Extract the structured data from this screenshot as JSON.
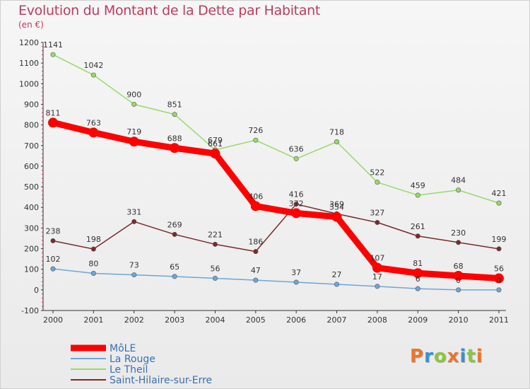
{
  "header": {
    "title": "Evolution du Montant de la Dette par Habitant",
    "subtitle": "(en €)"
  },
  "logo": {
    "text": "Proxiti",
    "letters": [
      {
        "ch": "P",
        "color": "#e8762d"
      },
      {
        "ch": "r",
        "color": "#3a8fd0"
      },
      {
        "ch": "o",
        "color": "#8cc63f"
      },
      {
        "ch": "x",
        "color": "#e8762d"
      },
      {
        "ch": "i",
        "color": "#3a8fd0"
      },
      {
        "ch": "t",
        "color": "#8cc63f"
      },
      {
        "ch": "i",
        "color": "#e8762d"
      }
    ]
  },
  "chart_data": {
    "type": "line",
    "title": "Evolution du Montant de la Dette par Habitant",
    "subtitle": "(en €)",
    "xlabel": "",
    "ylabel": "",
    "x": [
      "2000",
      "2001",
      "2002",
      "2003",
      "2004",
      "2005",
      "2006",
      "2007",
      "2008",
      "2009",
      "2010",
      "2011"
    ],
    "ylim": [
      -100,
      1200
    ],
    "yticks": [
      -100,
      0,
      100,
      200,
      300,
      400,
      500,
      600,
      700,
      800,
      900,
      1000,
      1100,
      1200
    ],
    "grid": false,
    "legend_position": "bottom-left",
    "series": [
      {
        "name": "MôLE",
        "color": "#ff0000",
        "values": [
          811,
          763,
          719,
          688,
          661,
          406,
          372,
          354,
          107,
          81,
          68,
          56
        ],
        "labels": [
          "811",
          "763",
          "719",
          "688",
          "661",
          "406",
          "372",
          "354",
          "107",
          "81",
          "68",
          "56"
        ]
      },
      {
        "name": "La Rouge",
        "color": "#6ea6d8",
        "values": [
          102,
          80,
          73,
          65,
          56,
          47,
          37,
          27,
          17,
          6,
          0,
          0
        ],
        "labels": [
          "102",
          "80",
          "73",
          "65",
          "56",
          "47",
          "37",
          "27",
          "17",
          "6",
          "0",
          "0"
        ]
      },
      {
        "name": "Le Theil",
        "color": "#99d96a",
        "values": [
          1141,
          1042,
          900,
          851,
          679,
          726,
          636,
          718,
          522,
          459,
          484,
          421
        ],
        "labels": [
          "1141",
          "1042",
          "900",
          "851",
          "679",
          "726",
          "636",
          "718",
          "522",
          "459",
          "484",
          "421"
        ]
      },
      {
        "name": "Saint-Hilaire-sur-Erre",
        "color": "#7a2a2a",
        "values": [
          238,
          198,
          331,
          269,
          221,
          186,
          416,
          369,
          327,
          261,
          230,
          199
        ],
        "labels": [
          "238",
          "198",
          "331",
          "269",
          "221",
          "186",
          "416",
          "369",
          "327",
          "261",
          "230",
          "199"
        ]
      }
    ]
  }
}
